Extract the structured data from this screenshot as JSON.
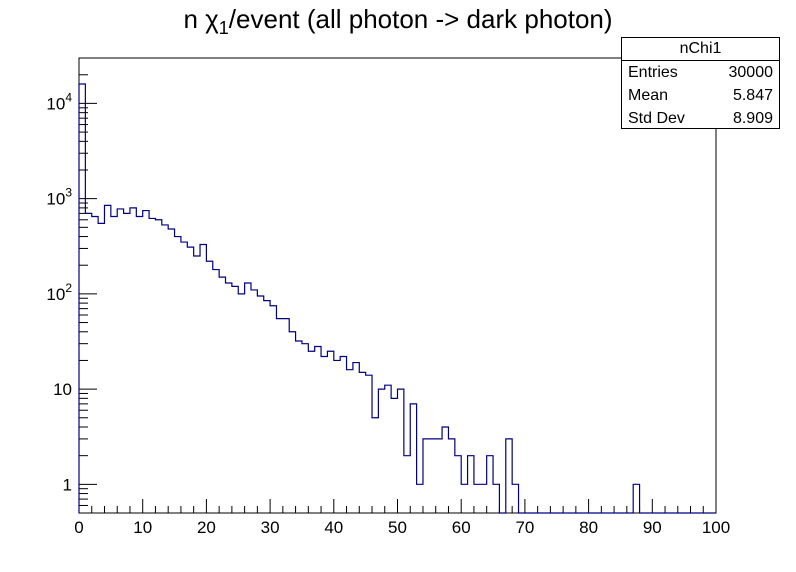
{
  "chart_data": {
    "type": "histogram",
    "title_main": "n χ",
    "title_sub": "1",
    "title_rest": "/event (all photon -> dark photon)",
    "xlabel": "",
    "ylabel": "",
    "xlim": [
      0,
      100
    ],
    "ylim": [
      0.5,
      30000
    ],
    "y_scale": "log",
    "bin_width": 1,
    "grid": false,
    "line_color": "#000080",
    "x_ticks": [
      "0",
      "10",
      "20",
      "30",
      "40",
      "50",
      "60",
      "70",
      "80",
      "90",
      "100"
    ],
    "y_ticks": [
      {
        "value": 1,
        "base": "1",
        "exp": ""
      },
      {
        "value": 10,
        "base": "10",
        "exp": ""
      },
      {
        "value": 100,
        "base": "10",
        "exp": "2"
      },
      {
        "value": 1000,
        "base": "10",
        "exp": "3"
      },
      {
        "value": 10000,
        "base": "10",
        "exp": "4"
      }
    ],
    "values": [
      16000,
      700,
      650,
      550,
      850,
      650,
      780,
      700,
      800,
      650,
      750,
      620,
      600,
      530,
      480,
      400,
      350,
      310,
      250,
      330,
      220,
      180,
      150,
      130,
      120,
      100,
      130,
      110,
      95,
      85,
      75,
      55,
      55,
      40,
      32,
      30,
      25,
      28,
      22,
      25,
      20,
      22,
      16,
      19,
      15,
      14,
      5,
      10,
      11,
      8,
      10,
      2,
      7,
      1,
      3,
      3,
      3,
      4,
      3,
      2,
      1,
      2,
      1,
      1,
      2,
      1,
      0,
      3,
      1,
      0,
      0,
      0,
      0,
      0,
      0,
      0,
      0,
      0,
      0,
      0,
      0,
      0,
      0,
      0,
      0,
      0,
      0,
      1,
      0,
      0,
      0,
      0,
      0,
      0,
      0,
      0,
      0,
      0,
      0,
      0
    ],
    "stats_box": {
      "name": "nChi1",
      "rows": [
        {
          "label": "Entries",
          "value": "30000"
        },
        {
          "label": "Mean",
          "value": "5.847"
        },
        {
          "label": "Std Dev",
          "value": "8.909"
        }
      ]
    }
  }
}
